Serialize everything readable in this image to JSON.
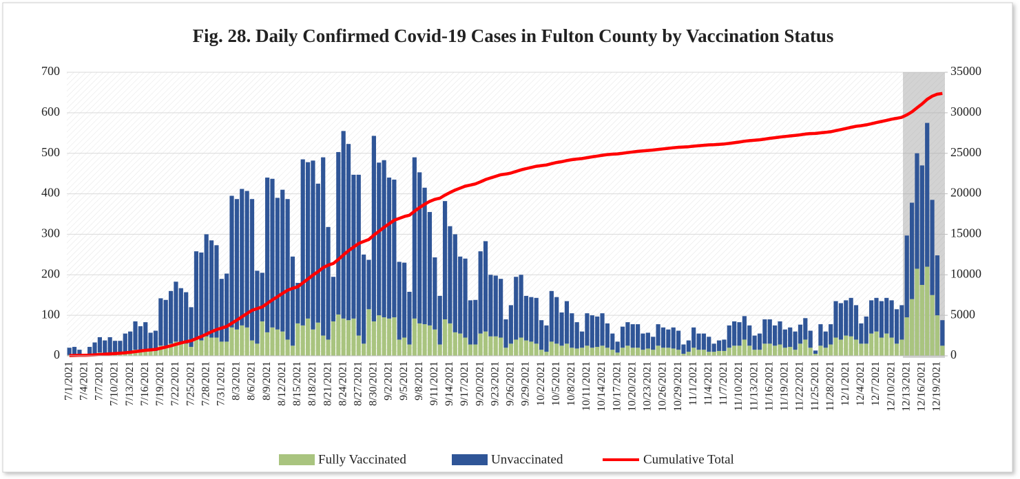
{
  "chart_data": {
    "type": "bar",
    "stacked": true,
    "title": "Fig. 28. Daily Confirmed Covid-19 Cases in Fulton County by Vaccination Status",
    "categories": [
      "7/1/2021",
      null,
      null,
      "7/4/2021",
      null,
      null,
      "7/7/2021",
      null,
      null,
      "7/10/2021",
      null,
      null,
      "7/13/2021",
      null,
      null,
      "7/16/2021",
      null,
      null,
      "7/19/2021",
      null,
      null,
      "7/22/2021",
      null,
      null,
      "7/25/2021",
      null,
      null,
      "7/28/2021",
      null,
      null,
      "7/31/2021",
      null,
      null,
      "8/3/2021",
      null,
      null,
      "8/6/2021",
      null,
      null,
      "8/9/2021",
      null,
      null,
      "8/12/2021",
      null,
      null,
      "8/15/2021",
      null,
      null,
      "8/18/2021",
      null,
      null,
      "8/21/2021",
      null,
      null,
      "8/24/2021",
      null,
      null,
      "8/27/2021",
      null,
      null,
      "8/30/2021",
      null,
      null,
      "9/2/2021",
      null,
      null,
      "9/5/2021",
      null,
      null,
      "9/8/2021",
      null,
      null,
      "9/11/2021",
      null,
      null,
      "9/14/2021",
      null,
      null,
      "9/17/2021",
      null,
      null,
      "9/20/2021",
      null,
      null,
      "9/23/2021",
      null,
      null,
      "9/26/2021",
      null,
      null,
      "9/29/2021",
      null,
      null,
      "10/2/2021",
      null,
      null,
      "10/5/2021",
      null,
      null,
      "10/8/2021",
      null,
      null,
      "10/11/2021",
      null,
      null,
      "10/14/2021",
      null,
      null,
      "10/17/2021",
      null,
      null,
      "10/20/2021",
      null,
      null,
      "10/23/2021",
      null,
      null,
      "10/26/2021",
      null,
      null,
      "10/29/2021",
      null,
      null,
      "11/1/2021",
      null,
      null,
      "11/4/2021",
      null,
      null,
      "11/7/2021",
      null,
      null,
      "11/10/2021",
      null,
      null,
      "11/13/2021",
      null,
      null,
      "11/16/2021",
      null,
      null,
      "11/19/2021",
      null,
      null,
      "11/22/2021",
      null,
      null,
      "11/25/2021",
      null,
      null,
      "11/28/2021",
      null,
      null,
      "12/1/2021",
      null,
      null,
      "12/4/2021",
      null,
      null,
      "12/7/2021",
      null,
      null,
      "12/10/2021",
      null,
      null,
      "12/13/2021",
      null,
      null,
      "12/16/2021",
      null,
      null,
      "12/19/2021",
      null
    ],
    "series": [
      {
        "name": "Fully Vaccinated",
        "color": "#a9c47f",
        "values": [
          2,
          3,
          2,
          1,
          3,
          5,
          8,
          7,
          8,
          7,
          7,
          10,
          11,
          15,
          13,
          15,
          11,
          12,
          25,
          25,
          30,
          35,
          32,
          30,
          22,
          40,
          38,
          48,
          45,
          45,
          35,
          35,
          70,
          65,
          75,
          70,
          38,
          30,
          85,
          58,
          70,
          65,
          60,
          40,
          25,
          80,
          75,
          92,
          65,
          82,
          50,
          40,
          85,
          102,
          92,
          88,
          92,
          50,
          30,
          115,
          85,
          100,
          95,
          92,
          95,
          40,
          45,
          28,
          92,
          80,
          78,
          75,
          65,
          28,
          90,
          80,
          58,
          55,
          45,
          28,
          28,
          55,
          60,
          48,
          48,
          45,
          20,
          30,
          40,
          45,
          38,
          35,
          30,
          15,
          10,
          35,
          30,
          25,
          30,
          20,
          18,
          20,
          25,
          20,
          22,
          25,
          20,
          15,
          8,
          20,
          25,
          20,
          20,
          15,
          18,
          15,
          25,
          20,
          20,
          18,
          15,
          5,
          10,
          20,
          15,
          15,
          10,
          10,
          12,
          12,
          20,
          25,
          25,
          40,
          25,
          15,
          15,
          30,
          30,
          25,
          28,
          20,
          22,
          15,
          30,
          40,
          20,
          5,
          25,
          20,
          28,
          45,
          40,
          50,
          48,
          40,
          30,
          30,
          55,
          60,
          45,
          55,
          45,
          30,
          40,
          95,
          140,
          215,
          175,
          220,
          150,
          100,
          25
        ]
      },
      {
        "name": "Unvaccinated",
        "color": "#2f5597",
        "values": [
          18,
          19,
          13,
          4,
          19,
          28,
          38,
          31,
          38,
          30,
          30,
          45,
          49,
          70,
          60,
          68,
          46,
          50,
          117,
          113,
          130,
          148,
          135,
          127,
          98,
          218,
          217,
          252,
          240,
          228,
          155,
          168,
          325,
          322,
          337,
          337,
          349,
          180,
          120,
          382,
          367,
          325,
          350,
          347,
          220,
          100,
          410,
          386,
          417,
          343,
          440,
          278,
          110,
          401,
          463,
          435,
          355,
          397,
          220,
          122,
          458,
          377,
          388,
          348,
          340,
          192,
          185,
          130,
          398,
          373,
          337,
          280,
          178,
          120,
          292,
          240,
          242,
          190,
          195,
          109,
          110,
          203,
          223,
          152,
          150,
          145,
          70,
          95,
          155,
          155,
          110,
          110,
          113,
          73,
          65,
          125,
          115,
          82,
          105,
          85,
          65,
          40,
          80,
          80,
          75,
          80,
          60,
          40,
          27,
          52,
          58,
          58,
          58,
          40,
          39,
          32,
          53,
          50,
          45,
          52,
          47,
          23,
          28,
          50,
          40,
          40,
          37,
          20,
          26,
          28,
          55,
          60,
          58,
          58,
          50,
          35,
          40,
          60,
          60,
          50,
          57,
          45,
          48,
          45,
          47,
          53,
          42,
          8,
          53,
          40,
          50,
          90,
          90,
          87,
          95,
          85,
          50,
          67,
          82,
          83,
          90,
          88,
          92,
          85,
          85,
          202,
          238,
          285,
          295,
          355,
          235,
          148,
          63
        ]
      },
      {
        "name": "Cumulative Total",
        "color": "#ff0000",
        "type": "line",
        "axis": "y2",
        "values": [
          20,
          42,
          57,
          62,
          84,
          117,
          163,
          201,
          247,
          284,
          321,
          376,
          436,
          521,
          594,
          677,
          734,
          796,
          938,
          1076,
          1236,
          1419,
          1586,
          1743,
          1863,
          2121,
          2376,
          2676,
          2961,
          3234,
          3424,
          3627,
          4022,
          4409,
          4821,
          5228,
          5615,
          5825,
          6030,
          6470,
          6907,
          7297,
          7707,
          8094,
          8339,
          8519,
          9004,
          9482,
          9964,
          10389,
          10879,
          11197,
          11392,
          11895,
          12450,
          12973,
          13420,
          13867,
          14117,
          14354,
          14897,
          15374,
          15857,
          16297,
          16732,
          16964,
          17194,
          17352,
          17842,
          18295,
          18710,
          19065,
          19308,
          19456,
          19838,
          20158,
          20458,
          20703,
          20943,
          21080,
          21218,
          21476,
          21759,
          21959,
          22157,
          22347,
          22437,
          22562,
          22757,
          22957,
          23105,
          23250,
          23393,
          23481,
          23556,
          23716,
          23861,
          23968,
          24103,
          24208,
          24291,
          24351,
          24456,
          24556,
          24653,
          24758,
          24838,
          24893,
          24928,
          25000,
          25083,
          25161,
          25239,
          25294,
          25351,
          25398,
          25476,
          25546,
          25611,
          25681,
          25743,
          25771,
          25809,
          25879,
          25934,
          25989,
          26036,
          26066,
          26104,
          26144,
          26219,
          26304,
          26387,
          26485,
          26560,
          26610,
          26665,
          26755,
          26845,
          26920,
          27005,
          27070,
          27140,
          27200,
          27277,
          27370,
          27432,
          27445,
          27523,
          27583,
          27661,
          27796,
          27926,
          28063,
          28206,
          28331,
          28411,
          28508,
          28645,
          28788,
          28923,
          29066,
          29203,
          29318,
          29443,
          29740,
          30118,
          30618,
          31088,
          31663,
          32048,
          32296,
          32384
        ]
      }
    ],
    "ylim": [
      0,
      700
    ],
    "yticks": [
      0,
      100,
      200,
      300,
      400,
      500,
      600,
      700
    ],
    "y2lim": [
      0,
      35000
    ],
    "y2ticks": [
      0,
      5000,
      10000,
      15000,
      20000,
      25000,
      30000,
      35000
    ],
    "legend": "bottom"
  }
}
